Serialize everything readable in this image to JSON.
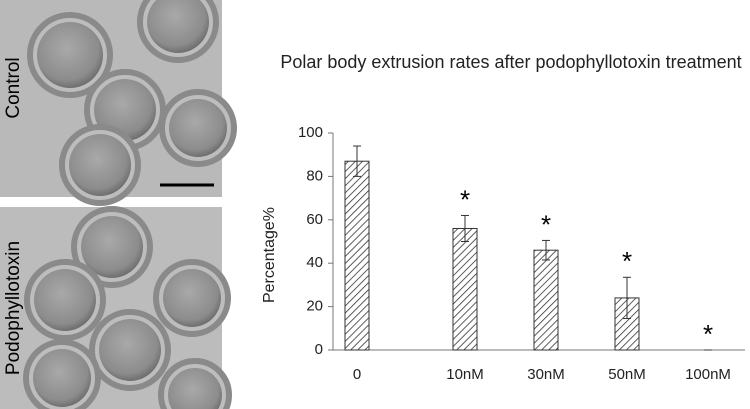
{
  "panels": [
    {
      "label": "Control"
    },
    {
      "label": "Podophyllotoxin"
    }
  ],
  "chart_data": {
    "type": "bar",
    "title": "Polar body extrusion rates after podophyllotoxin treatment",
    "ylabel": "Percentage%",
    "categories": [
      "0",
      "10nM",
      "30nM",
      "50nM",
      "100nM"
    ],
    "values": [
      87,
      56,
      46,
      24,
      0
    ],
    "errors": [
      7,
      6,
      4.5,
      9.5,
      0
    ],
    "significance": [
      null,
      "*",
      "*",
      "*",
      "*"
    ],
    "color": "#333333",
    "ylim": [
      0,
      100
    ],
    "yticks": [
      0,
      20,
      40,
      60,
      80,
      100
    ]
  }
}
